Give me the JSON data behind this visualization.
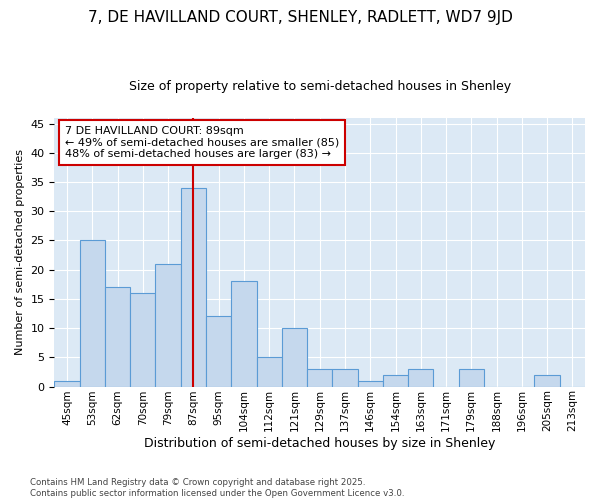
{
  "title": "7, DE HAVILLAND COURT, SHENLEY, RADLETT, WD7 9JD",
  "subtitle": "Size of property relative to semi-detached houses in Shenley",
  "xlabel": "Distribution of semi-detached houses by size in Shenley",
  "ylabel": "Number of semi-detached properties",
  "categories": [
    "45sqm",
    "53sqm",
    "62sqm",
    "70sqm",
    "79sqm",
    "87sqm",
    "95sqm",
    "104sqm",
    "112sqm",
    "121sqm",
    "129sqm",
    "137sqm",
    "146sqm",
    "154sqm",
    "163sqm",
    "171sqm",
    "179sqm",
    "188sqm",
    "196sqm",
    "205sqm",
    "213sqm"
  ],
  "values": [
    1,
    25,
    17,
    16,
    21,
    34,
    12,
    18,
    5,
    10,
    3,
    3,
    1,
    2,
    3,
    0,
    3,
    0,
    0,
    2,
    0
  ],
  "bar_color": "#c5d8ed",
  "bar_edge_color": "#5b9bd5",
  "highlight_index": 5,
  "highlight_line_color": "#cc0000",
  "annotation_text": "7 DE HAVILLAND COURT: 89sqm\n← 49% of semi-detached houses are smaller (85)\n48% of semi-detached houses are larger (83) →",
  "annotation_box_color": "#ffffff",
  "annotation_box_edge": "#cc0000",
  "ylim": [
    0,
    46
  ],
  "footnote": "Contains HM Land Registry data © Crown copyright and database right 2025.\nContains public sector information licensed under the Open Government Licence v3.0.",
  "bg_color": "#ffffff",
  "plot_bg_color": "#dce9f5",
  "grid_color": "#ffffff",
  "title_fontsize": 11,
  "subtitle_fontsize": 9
}
